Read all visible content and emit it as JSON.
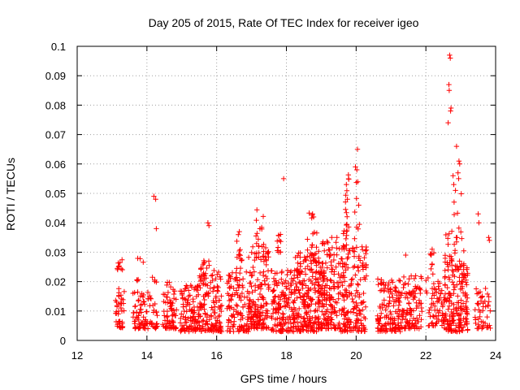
{
  "chart_data": {
    "type": "scatter",
    "title": "Day 205 of 2015, Rate Of TEC Index for receiver igeo",
    "xlabel": "GPS time / hours",
    "ylabel": "ROTI / TECUs",
    "xlim": [
      12,
      24
    ],
    "ylim": [
      0,
      0.1
    ],
    "grid": true,
    "marker": "+",
    "series_color": "#ff0000",
    "x_ticks": [
      "12",
      "14",
      "16",
      "18",
      "20",
      "22",
      "24"
    ],
    "y_ticks": [
      "0",
      "0.01",
      "0.02",
      "0.03",
      "0.04",
      "0.05",
      "0.06",
      "0.07",
      "0.08",
      "0.09",
      "0.1"
    ],
    "clusters": [
      {
        "x_start": 13.1,
        "x_end": 13.35,
        "y_min": 0.004,
        "y_max": 0.018,
        "n": 40
      },
      {
        "x_start": 13.15,
        "x_end": 13.3,
        "y_min": 0.024,
        "y_max": 0.029,
        "n": 10
      },
      {
        "x_start": 13.6,
        "x_end": 14.3,
        "y_min": 0.004,
        "y_max": 0.017,
        "n": 90
      },
      {
        "x_start": 13.7,
        "x_end": 13.9,
        "y_min": 0.019,
        "y_max": 0.028,
        "n": 6
      },
      {
        "x_start": 14.15,
        "x_end": 14.3,
        "y_min": 0.019,
        "y_max": 0.022,
        "n": 4
      },
      {
        "x_start": 14.45,
        "x_end": 14.85,
        "y_min": 0.004,
        "y_max": 0.02,
        "n": 70
      },
      {
        "x_start": 14.95,
        "x_end": 15.5,
        "y_min": 0.003,
        "y_max": 0.019,
        "n": 110
      },
      {
        "x_start": 15.5,
        "x_end": 16.15,
        "y_min": 0.003,
        "y_max": 0.025,
        "n": 140
      },
      {
        "x_start": 15.6,
        "x_end": 15.8,
        "y_min": 0.022,
        "y_max": 0.029,
        "n": 10
      },
      {
        "x_start": 16.3,
        "x_end": 17.0,
        "y_min": 0.003,
        "y_max": 0.024,
        "n": 120
      },
      {
        "x_start": 16.5,
        "x_end": 16.75,
        "y_min": 0.024,
        "y_max": 0.034,
        "n": 12
      },
      {
        "x_start": 16.9,
        "x_end": 17.5,
        "y_min": 0.004,
        "y_max": 0.032,
        "n": 150
      },
      {
        "x_start": 17.1,
        "x_end": 17.35,
        "y_min": 0.032,
        "y_max": 0.045,
        "n": 12
      },
      {
        "x_start": 17.55,
        "x_end": 18.2,
        "y_min": 0.003,
        "y_max": 0.024,
        "n": 140
      },
      {
        "x_start": 17.7,
        "x_end": 17.85,
        "y_min": 0.03,
        "y_max": 0.038,
        "n": 10
      },
      {
        "x_start": 18.2,
        "x_end": 18.95,
        "y_min": 0.003,
        "y_max": 0.03,
        "n": 220
      },
      {
        "x_start": 18.6,
        "x_end": 18.9,
        "y_min": 0.028,
        "y_max": 0.044,
        "n": 16
      },
      {
        "x_start": 18.9,
        "x_end": 19.5,
        "y_min": 0.004,
        "y_max": 0.034,
        "n": 180
      },
      {
        "x_start": 19.5,
        "x_end": 20.3,
        "y_min": 0.003,
        "y_max": 0.032,
        "n": 180
      },
      {
        "x_start": 19.6,
        "x_end": 19.8,
        "y_min": 0.032,
        "y_max": 0.059,
        "n": 20
      },
      {
        "x_start": 19.9,
        "x_end": 20.1,
        "y_min": 0.03,
        "y_max": 0.06,
        "n": 14
      },
      {
        "x_start": 20.6,
        "x_end": 21.3,
        "y_min": 0.003,
        "y_max": 0.021,
        "n": 140
      },
      {
        "x_start": 21.3,
        "x_end": 21.9,
        "y_min": 0.004,
        "y_max": 0.022,
        "n": 100
      },
      {
        "x_start": 22.0,
        "x_end": 22.5,
        "y_min": 0.005,
        "y_max": 0.022,
        "n": 60
      },
      {
        "x_start": 22.1,
        "x_end": 22.25,
        "y_min": 0.022,
        "y_max": 0.031,
        "n": 8
      },
      {
        "x_start": 22.5,
        "x_end": 23.2,
        "y_min": 0.003,
        "y_max": 0.025,
        "n": 180
      },
      {
        "x_start": 22.55,
        "x_end": 22.75,
        "y_min": 0.025,
        "y_max": 0.044,
        "n": 18
      },
      {
        "x_start": 22.8,
        "x_end": 23.1,
        "y_min": 0.025,
        "y_max": 0.05,
        "n": 24
      },
      {
        "x_start": 23.4,
        "x_end": 23.85,
        "y_min": 0.004,
        "y_max": 0.019,
        "n": 50
      }
    ],
    "points": [
      {
        "x": 14.2,
        "y": 0.049
      },
      {
        "x": 14.25,
        "y": 0.048
      },
      {
        "x": 14.27,
        "y": 0.038
      },
      {
        "x": 15.75,
        "y": 0.04
      },
      {
        "x": 15.78,
        "y": 0.039
      },
      {
        "x": 16.62,
        "y": 0.036
      },
      {
        "x": 16.65,
        "y": 0.037
      },
      {
        "x": 17.8,
        "y": 0.034
      },
      {
        "x": 17.92,
        "y": 0.055
      },
      {
        "x": 18.75,
        "y": 0.043
      },
      {
        "x": 18.78,
        "y": 0.042
      },
      {
        "x": 19.3,
        "y": 0.035
      },
      {
        "x": 19.45,
        "y": 0.035
      },
      {
        "x": 19.72,
        "y": 0.053
      },
      {
        "x": 19.75,
        "y": 0.048
      },
      {
        "x": 19.98,
        "y": 0.059
      },
      {
        "x": 20.02,
        "y": 0.058
      },
      {
        "x": 20.04,
        "y": 0.065
      },
      {
        "x": 21.42,
        "y": 0.029
      },
      {
        "x": 22.18,
        "y": 0.031
      },
      {
        "x": 22.68,
        "y": 0.097
      },
      {
        "x": 22.7,
        "y": 0.096
      },
      {
        "x": 22.66,
        "y": 0.087
      },
      {
        "x": 22.67,
        "y": 0.085
      },
      {
        "x": 22.72,
        "y": 0.079
      },
      {
        "x": 22.71,
        "y": 0.078
      },
      {
        "x": 22.64,
        "y": 0.074
      },
      {
        "x": 22.88,
        "y": 0.066
      },
      {
        "x": 22.95,
        "y": 0.061
      },
      {
        "x": 22.97,
        "y": 0.06
      },
      {
        "x": 22.92,
        "y": 0.057
      },
      {
        "x": 22.94,
        "y": 0.055
      },
      {
        "x": 22.78,
        "y": 0.056
      },
      {
        "x": 22.8,
        "y": 0.053
      },
      {
        "x": 22.85,
        "y": 0.051
      },
      {
        "x": 23.5,
        "y": 0.043
      },
      {
        "x": 23.52,
        "y": 0.04
      },
      {
        "x": 23.8,
        "y": 0.035
      },
      {
        "x": 23.82,
        "y": 0.034
      }
    ]
  }
}
